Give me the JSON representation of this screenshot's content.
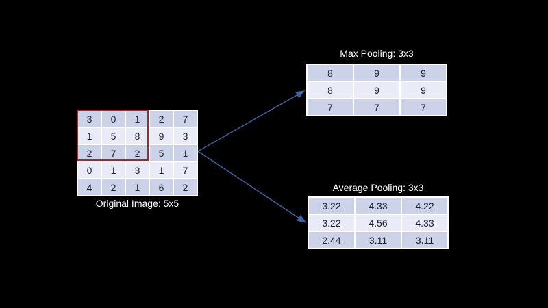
{
  "slide": {
    "original_image": {
      "label": "Original Image: 5x5",
      "grid": [
        [
          3,
          0,
          1,
          2,
          7
        ],
        [
          1,
          5,
          8,
          9,
          3
        ],
        [
          2,
          7,
          2,
          5,
          1
        ],
        [
          0,
          1,
          3,
          1,
          7
        ],
        [
          4,
          2,
          1,
          6,
          2
        ]
      ],
      "highlight_window": "top-left 3x3 region outlined in red"
    },
    "max_pooling": {
      "title": "Max Pooling: 3x3",
      "grid": [
        [
          8,
          9,
          9
        ],
        [
          8,
          9,
          9
        ],
        [
          7,
          7,
          7
        ]
      ]
    },
    "average_pooling": {
      "title": "Average Pooling: 3x3",
      "grid": [
        [
          "3.22",
          "4.33",
          "4.22"
        ],
        [
          "3.22",
          "4.56",
          "4.33"
        ],
        [
          "2.44",
          "3.11",
          "3.11"
        ]
      ]
    },
    "colors": {
      "background": "#000000",
      "cell_band_dark": "#ccd3e9",
      "cell_band_light": "#e9ecf6",
      "cell_border": "#ffffff",
      "cell_text": "#1b2130",
      "caption_text": "#ffffff",
      "arrow": "#4063a6",
      "highlight_red": "#a52a26"
    }
  }
}
